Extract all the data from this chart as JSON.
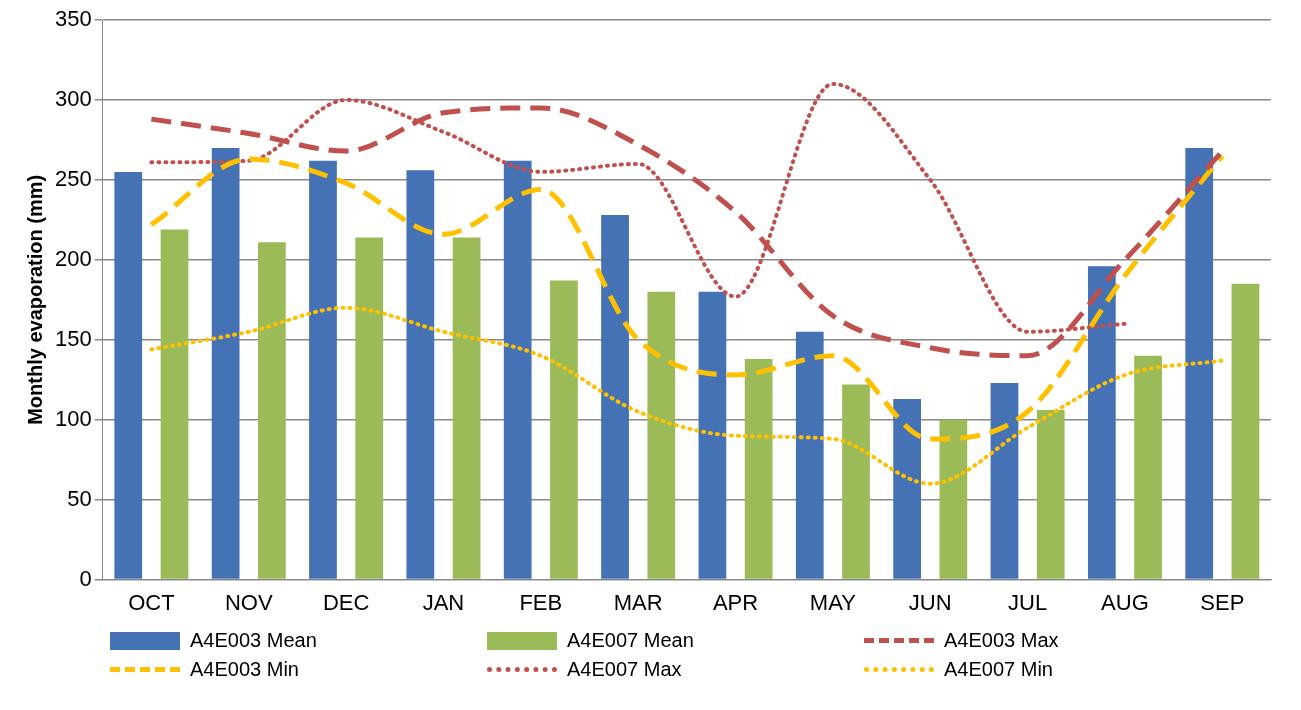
{
  "chart_data": {
    "type": "bar",
    "ylabel": "Monthly evaporation (mm)",
    "categories": [
      "OCT",
      "NOV",
      "DEC",
      "JAN",
      "FEB",
      "MAR",
      "APR",
      "MAY",
      "JUN",
      "JUL",
      "AUG",
      "SEP"
    ],
    "series": [
      {
        "name": "A4E003 Mean",
        "color": "#4472b4",
        "values": [
          255,
          270,
          262,
          256,
          262,
          228,
          180,
          155,
          113,
          123,
          196,
          270
        ]
      },
      {
        "name": "A4E007 Mean",
        "color": "#9bbb59",
        "values": [
          219,
          211,
          214,
          214,
          187,
          180,
          138,
          122,
          100,
          106,
          140,
          185
        ]
      },
      {
        "name": "A4E003 Max",
        "type": "line",
        "line_style": "dashed",
        "color": "#c0504d",
        "values": [
          288,
          279,
          268,
          292,
          295,
          272,
          230,
          165,
          145,
          140,
          200,
          268
        ]
      },
      {
        "name": "A4E003 Min",
        "type": "line",
        "line_style": "dashed",
        "color": "#ffc000",
        "values": [
          222,
          263,
          248,
          216,
          244,
          150,
          128,
          140,
          88,
          105,
          190,
          265
        ]
      },
      {
        "name": "A4E007 Max",
        "type": "line",
        "line_style": "dotted",
        "color": "#c0504d",
        "values": [
          261,
          262,
          300,
          280,
          255,
          260,
          177,
          310,
          250,
          155,
          160,
          null
        ]
      },
      {
        "name": "A4E007 Min",
        "type": "line",
        "line_style": "dotted",
        "color": "#ffc000",
        "values": [
          144,
          155,
          170,
          155,
          140,
          105,
          90,
          88,
          60,
          95,
          128,
          137
        ]
      }
    ],
    "ylim": [
      0,
      350
    ],
    "yticks": [
      0,
      50,
      100,
      150,
      200,
      250,
      300,
      350
    ],
    "grid": "y",
    "legend": "bottom",
    "marker": "none"
  }
}
